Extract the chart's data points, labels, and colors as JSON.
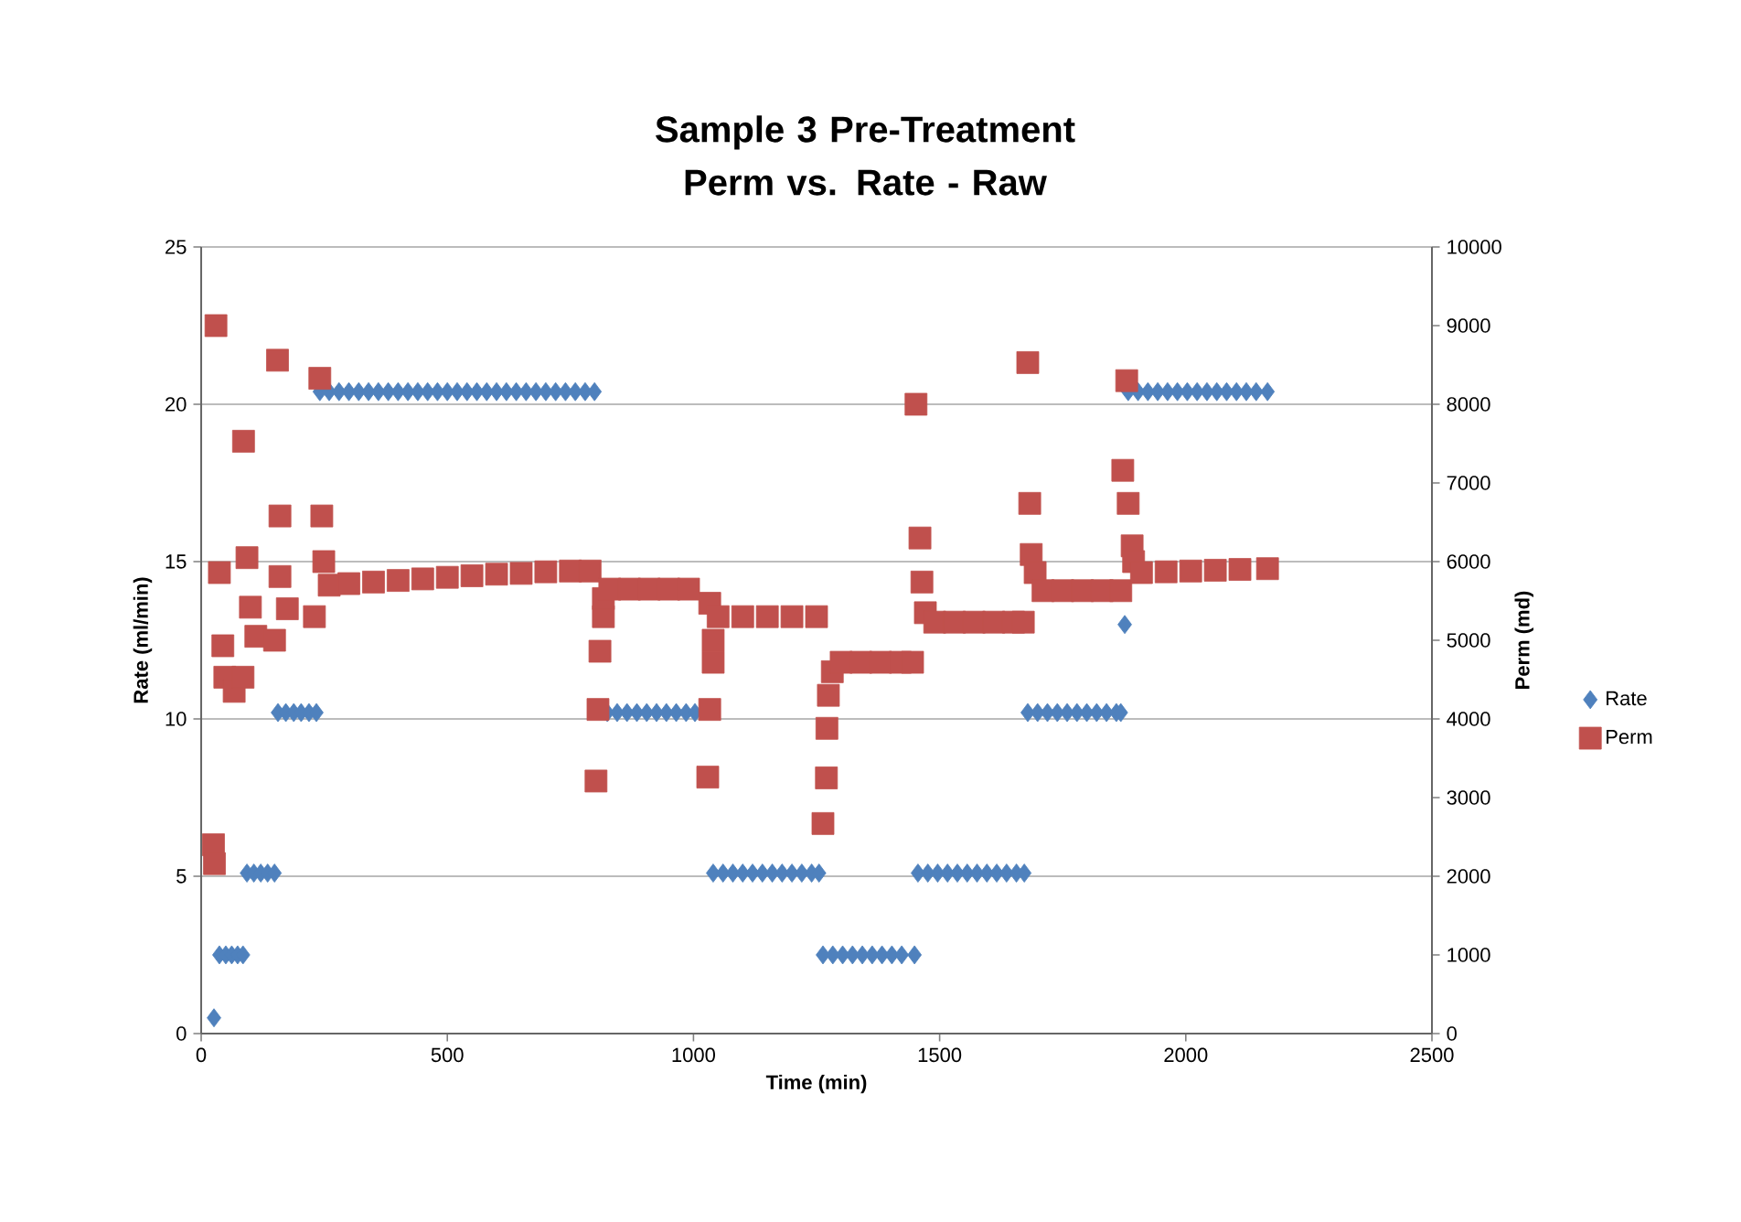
{
  "chart_data": {
    "type": "scatter",
    "title": "Sample 3 Pre-Treatment Perm vs. Rate - Raw",
    "xlabel": "Time (min)",
    "ylabel": "Rate (ml/min)",
    "y2label": "Perm (md)",
    "xlim": [
      0,
      2500
    ],
    "xticks": [
      0,
      500,
      1000,
      1500,
      2000,
      2500
    ],
    "ylim": [
      0,
      25
    ],
    "yticks": [
      0,
      5,
      10,
      15,
      20,
      25
    ],
    "y2lim": [
      0,
      10000
    ],
    "y2ticks": [
      0,
      1000,
      2000,
      3000,
      4000,
      5000,
      6000,
      7000,
      8000,
      9000,
      10000
    ],
    "grid": "y",
    "legend": "right",
    "series": [
      {
        "name": "Rate",
        "color": "#4f81bd",
        "marker": "diamond",
        "x": [
          26,
          37,
          50,
          62,
          74,
          85,
          93,
          107,
          121,
          135,
          149,
          156,
          172,
          188,
          203,
          219,
          234,
          241,
          260,
          280,
          300,
          320,
          340,
          360,
          380,
          400,
          420,
          440,
          460,
          480,
          500,
          520,
          540,
          560,
          580,
          600,
          620,
          640,
          660,
          680,
          700,
          720,
          740,
          760,
          780,
          799,
          825,
          845,
          865,
          885,
          905,
          925,
          945,
          965,
          985,
          1003,
          1040,
          1060,
          1080,
          1100,
          1120,
          1140,
          1160,
          1180,
          1200,
          1220,
          1240,
          1255,
          1263,
          1283,
          1303,
          1323,
          1343,
          1363,
          1383,
          1403,
          1423,
          1449,
          1456,
          1476,
          1496,
          1516,
          1536,
          1556,
          1576,
          1596,
          1616,
          1636,
          1656,
          1672,
          1679,
          1699,
          1719,
          1739,
          1759,
          1779,
          1799,
          1819,
          1839,
          1859,
          1868,
          1876,
          1883,
          1903,
          1923,
          1943,
          1963,
          1983,
          2003,
          2023,
          2043,
          2063,
          2083,
          2103,
          2123,
          2143,
          2166
        ],
        "values": [
          0.5,
          2.5,
          2.5,
          2.5,
          2.5,
          2.5,
          5.1,
          5.1,
          5.1,
          5.1,
          5.1,
          10.2,
          10.2,
          10.2,
          10.2,
          10.2,
          10.2,
          20.4,
          20.4,
          20.4,
          20.4,
          20.4,
          20.4,
          20.4,
          20.4,
          20.4,
          20.4,
          20.4,
          20.4,
          20.4,
          20.4,
          20.4,
          20.4,
          20.4,
          20.4,
          20.4,
          20.4,
          20.4,
          20.4,
          20.4,
          20.4,
          20.4,
          20.4,
          20.4,
          20.4,
          20.4,
          10.2,
          10.2,
          10.2,
          10.2,
          10.2,
          10.2,
          10.2,
          10.2,
          10.2,
          10.2,
          5.1,
          5.1,
          5.1,
          5.1,
          5.1,
          5.1,
          5.1,
          5.1,
          5.1,
          5.1,
          5.1,
          5.1,
          2.5,
          2.5,
          2.5,
          2.5,
          2.5,
          2.5,
          2.5,
          2.5,
          2.5,
          2.5,
          5.1,
          5.1,
          5.1,
          5.1,
          5.1,
          5.1,
          5.1,
          5.1,
          5.1,
          5.1,
          5.1,
          5.1,
          10.2,
          10.2,
          10.2,
          10.2,
          10.2,
          10.2,
          10.2,
          10.2,
          10.2,
          10.2,
          10.2,
          13,
          20.4,
          20.4,
          20.4,
          20.4,
          20.4,
          20.4,
          20.4,
          20.4,
          20.4,
          20.4,
          20.4,
          20.4,
          20.4,
          20.4,
          20.4
        ]
      },
      {
        "name": "Perm",
        "color": "#c0504d",
        "marker": "square",
        "axis": "y2",
        "x": [
          25,
          27,
          30,
          37,
          44,
          48,
          67,
          85,
          86,
          93,
          100,
          111,
          149,
          155,
          160,
          160,
          175,
          230,
          241,
          245,
          249,
          260,
          300,
          350,
          400,
          450,
          500,
          550,
          600,
          650,
          700,
          750,
          790,
          802,
          806,
          810,
          817,
          817,
          830,
          870,
          910,
          950,
          990,
          1029,
          1033,
          1033,
          1040,
          1040,
          1050,
          1100,
          1150,
          1200,
          1250,
          1263,
          1270,
          1271,
          1274,
          1282,
          1300,
          1340,
          1380,
          1420,
          1445,
          1452,
          1460,
          1464,
          1471,
          1490,
          1530,
          1570,
          1610,
          1650,
          1670,
          1679,
          1683,
          1686,
          1694,
          1710,
          1750,
          1790,
          1830,
          1868,
          1872,
          1880,
          1883,
          1891,
          1894,
          1910,
          1960,
          2010,
          2060,
          2110,
          2166
        ],
        "values": [
          2400,
          2160,
          9000,
          5860,
          4930,
          4530,
          4350,
          4530,
          7530,
          6050,
          5420,
          5050,
          5000,
          8560,
          6580,
          5810,
          5400,
          5300,
          8330,
          6580,
          6000,
          5700,
          5720,
          5740,
          5760,
          5780,
          5800,
          5820,
          5840,
          5850,
          5870,
          5880,
          5880,
          3210,
          4120,
          4860,
          5300,
          5530,
          5650,
          5650,
          5650,
          5650,
          5650,
          3260,
          4120,
          5470,
          4720,
          5000,
          5300,
          5300,
          5300,
          5300,
          5300,
          2670,
          3250,
          3880,
          4300,
          4600,
          4720,
          4720,
          4720,
          4720,
          4720,
          8000,
          6300,
          5740,
          5350,
          5230,
          5230,
          5230,
          5230,
          5230,
          5230,
          8530,
          6740,
          6090,
          5860,
          5630,
          5630,
          5630,
          5630,
          5630,
          7160,
          8300,
          6740,
          6200,
          6000,
          5860,
          5870,
          5880,
          5890,
          5900,
          5910
        ]
      }
    ]
  }
}
